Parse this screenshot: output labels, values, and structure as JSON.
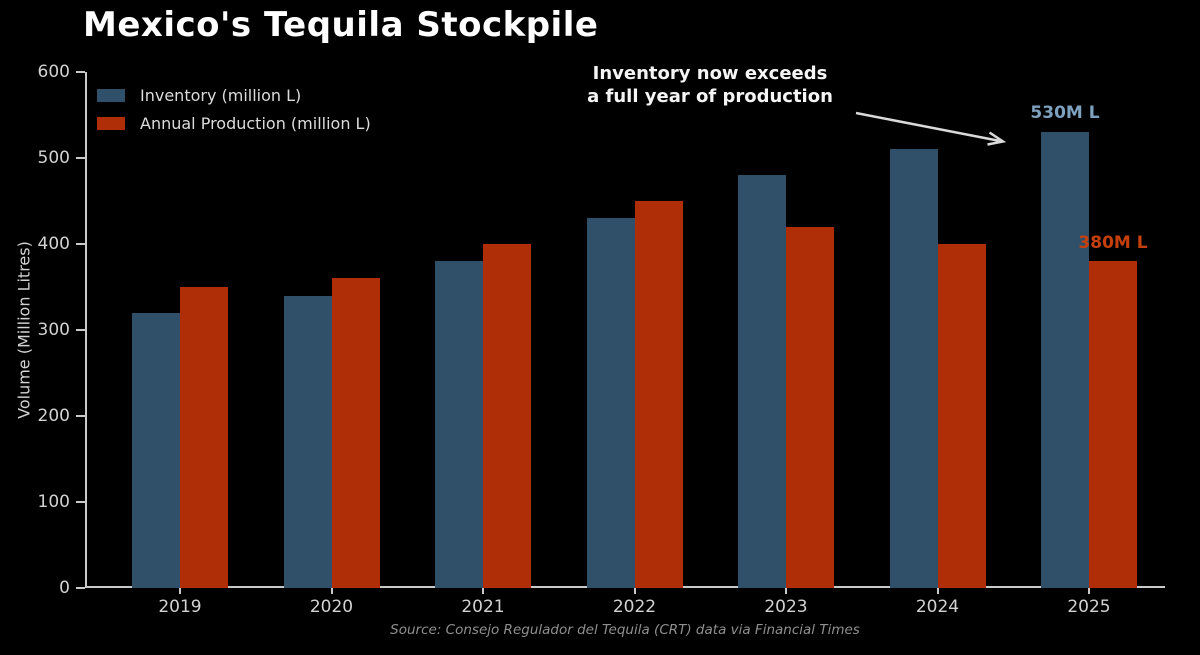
{
  "chart_data": {
    "type": "bar",
    "title": "Mexico's Tequila Stockpile",
    "categories": [
      "2019",
      "2020",
      "2021",
      "2022",
      "2023",
      "2024",
      "2025"
    ],
    "series": [
      {
        "name": "Inventory (million L)",
        "color": "#30506A",
        "values": [
          320,
          340,
          380,
          430,
          480,
          510,
          530
        ]
      },
      {
        "name": "Annual Production (million L)",
        "color": "#B02E07",
        "values": [
          350,
          360,
          400,
          450,
          420,
          400,
          380
        ]
      }
    ],
    "xlabel": "",
    "ylabel": "Volume (Million Litres)",
    "ylim": [
      0,
      600
    ],
    "yticks": [
      0,
      100,
      200,
      300,
      400,
      500,
      600
    ],
    "grid": false,
    "legend_position": "upper-left",
    "background": "#000000",
    "annotation": {
      "line1": "Inventory now exceeds",
      "line2": "a full year of production"
    },
    "bar_labels": [
      {
        "text": "530M L",
        "color": "#7DA1BE",
        "series": "Inventory (million L)",
        "category": "2025"
      },
      {
        "text": "380M L",
        "color": "#C6400E",
        "series": "Annual Production (million L)",
        "category": "2025"
      }
    ],
    "source": "Source: Consejo Regulador del Tequila (CRT) data via Financial Times"
  },
  "theme": {
    "background": "#000000",
    "title_color": "#FFFFFF",
    "axis_color": "#C9C9C9",
    "tick_label_color": "#D2D2D2",
    "legend_text_color": "#DCDCDC",
    "annotation_color": "#F5F5F5",
    "source_color": "#8F8F8F",
    "arrow_color": "#D9D9D9"
  }
}
